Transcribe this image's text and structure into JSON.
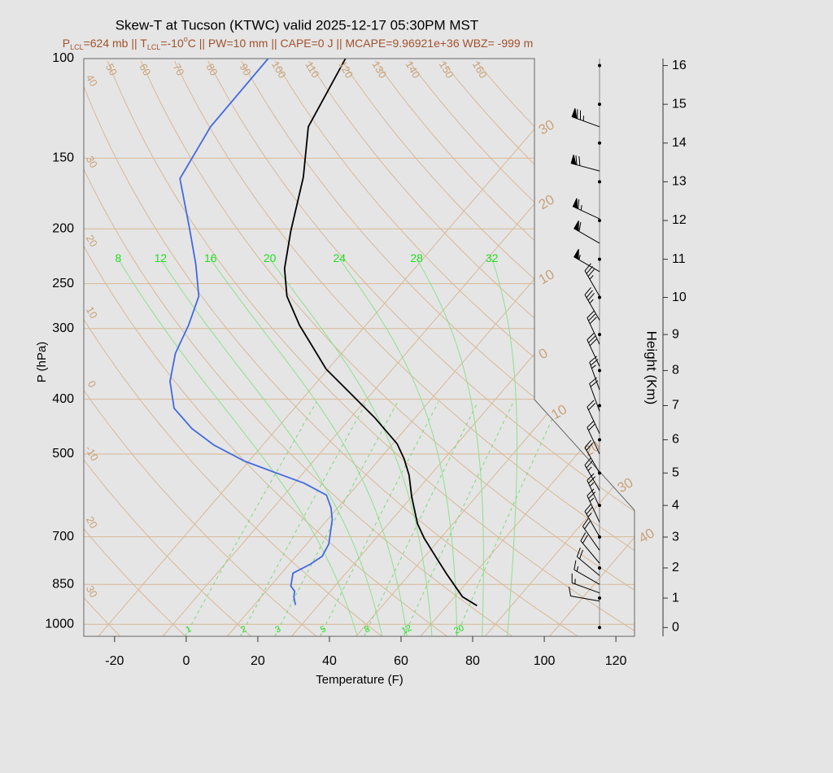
{
  "chart_data": {
    "type": "skewt",
    "title": "Skew-T at Tucson (KTWC) valid 2025-12-17 05:30PM MST",
    "subtitle": [
      {
        "text": "P"
      },
      {
        "text": "LCL",
        "shift": "sub"
      },
      {
        "text": "=624 mb || T"
      },
      {
        "text": "LCL",
        "shift": "sub"
      },
      {
        "text": "=-10"
      },
      {
        "text": "o",
        "shift": "super"
      },
      {
        "text": "C || PW=10 mm || CAPE=0 J || MCAPE=9.96921e+36 WBZ= -999 m"
      }
    ],
    "x_label": "Temperature (F)",
    "y_label": "P (hPa)",
    "y2_label": "Height (Km)",
    "xlim": [
      -28.6,
      125.2
    ],
    "ylim": [
      1050,
      100
    ],
    "log_y": true,
    "xticks": [
      -20,
      0,
      20,
      40,
      60,
      80,
      100,
      120
    ],
    "yticks": [
      100,
      150,
      200,
      250,
      300,
      400,
      500,
      700,
      850,
      1000
    ],
    "y2ticks": [
      0,
      1,
      2,
      3,
      4,
      5,
      6,
      7,
      8,
      9,
      10,
      11,
      12,
      13,
      14,
      15,
      16
    ],
    "series": [
      {
        "color": "#000000",
        "pressure": [
          927,
          894,
          817,
          770,
          704,
          664,
          595,
          545,
          510,
          480,
          432,
          391,
          354,
          296,
          263,
          235,
          202,
          162,
          132,
          100
        ],
        "values": [
          76.4,
          70.2,
          60.6,
          54.5,
          45.4,
          40.1,
          32.0,
          26.1,
          20.8,
          15.3,
          2.9,
          -9.8,
          -22.5,
          -40.5,
          -51.0,
          -58.3,
          -65.5,
          -75.0,
          -85.7,
          -91.7
        ]
      },
      {
        "color": "#4169e1",
        "pressure": [
          924,
          894,
          874,
          856,
          812,
          783,
          758,
          721,
          653,
          622,
          591,
          563,
          541,
          515,
          482,
          451,
          415,
          372,
          332,
          296,
          263,
          231,
          199,
          163,
          132,
          100
        ],
        "values": [
          25.5,
          23.1,
          22.0,
          19.7,
          17.2,
          19.9,
          21.3,
          20.2,
          15.3,
          12.1,
          7.8,
          -1.3,
          -11.1,
          -23.1,
          -35.7,
          -45.7,
          -55.6,
          -63.2,
          -68.4,
          -71.5,
          -75.6,
          -84.1,
          -94.7,
          -109.1,
          -113.0,
          -113.3
        ]
      }
    ],
    "isotherms": [
      {
        "value": -30,
        "label": "30"
      },
      {
        "value": -20,
        "label": "20"
      },
      {
        "value": -10,
        "label": "10"
      },
      0,
      10,
      20,
      30,
      40
    ],
    "dry_adiabats": [
      {
        "value": -30,
        "label": "30"
      },
      {
        "value": -20,
        "label": "20"
      },
      -10,
      0,
      10,
      20,
      30,
      40,
      50,
      60,
      70,
      80,
      90,
      100,
      110,
      120,
      130,
      140,
      150,
      160
    ],
    "moist_adiabats": [
      8,
      12,
      16,
      20,
      24,
      28,
      32
    ],
    "mixing_ratios": [
      1,
      2,
      3,
      5,
      8,
      12,
      20
    ],
    "winds": {
      "pressure": [
        132,
        158,
        192,
        212,
        238,
        263,
        290,
        320,
        350,
        385,
        420,
        460,
        500,
        540,
        580,
        620,
        660,
        700,
        740,
        780,
        820,
        850,
        880,
        910
      ],
      "direction": [
        290,
        285,
        295,
        300,
        300,
        330,
        330,
        335,
        335,
        340,
        340,
        335,
        335,
        330,
        330,
        335,
        335,
        330,
        325,
        320,
        310,
        300,
        290,
        280
      ],
      "speed": [
        75,
        70,
        65,
        60,
        55,
        35,
        35,
        30,
        30,
        25,
        20,
        20,
        20,
        20,
        25,
        25,
        25,
        25,
        20,
        20,
        20,
        15,
        15,
        10
      ]
    }
  }
}
